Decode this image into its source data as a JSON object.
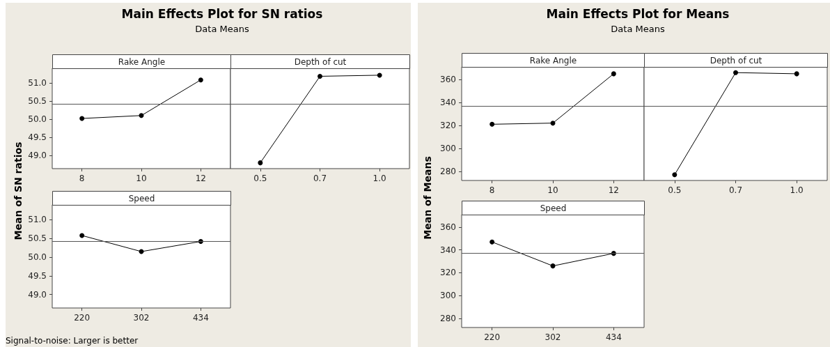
{
  "chart_data": [
    {
      "type": "other",
      "title": "Main Effects Plot for SN ratios",
      "subtitle": "Data Means",
      "ylabel": "Mean of SN ratios",
      "annotations": [
        "Signal-to-noise: Larger is better"
      ]
    },
    {
      "type": "line",
      "title": "Rake Angle",
      "categories": [
        "8",
        "10",
        "12"
      ],
      "values": [
        50.02,
        50.1,
        51.08
      ],
      "color": "#000000",
      "ylim": [
        48.64,
        51.4
      ],
      "yticks": [
        {
          "value": 49,
          "label": "49.0"
        },
        49.5,
        {
          "value": 50,
          "label": "50.0"
        },
        50.5,
        {
          "value": 51,
          "label": "51.0"
        }
      ],
      "ref_lines": [
        {
          "axis": "y",
          "value": 50.42
        }
      ],
      "marker": "circle",
      "grid": false
    },
    {
      "type": "line",
      "title": "Depth of cut",
      "categories": [
        "0.5",
        "0.7",
        "1.0"
      ],
      "values": [
        48.8,
        51.18,
        51.21
      ],
      "color": "#000000",
      "ylim": [
        48.64,
        51.4
      ],
      "yticks": [
        49,
        49.5,
        50,
        50.5,
        51
      ],
      "ref_lines": [
        {
          "axis": "y",
          "value": 50.42
        }
      ],
      "marker": "circle",
      "grid": false,
      "tick_labels": "x"
    },
    {
      "type": "line",
      "title": "Speed",
      "categories": [
        "220",
        "302",
        "434"
      ],
      "values": [
        50.58,
        50.15,
        50.42
      ],
      "color": "#000000",
      "ylim": [
        48.64,
        51.4
      ],
      "yticks": [
        {
          "value": 49,
          "label": "49.0"
        },
        49.5,
        {
          "value": 50,
          "label": "50.0"
        },
        50.5,
        {
          "value": 51,
          "label": "51.0"
        }
      ],
      "ref_lines": [
        {
          "axis": "y",
          "value": 50.42
        }
      ],
      "marker": "circle",
      "grid": false
    },
    {
      "type": "other",
      "title": "Main Effects Plot for Means",
      "subtitle": "Data Means",
      "ylabel": "Mean of Means"
    },
    {
      "type": "line",
      "title": "Rake Angle",
      "categories": [
        "8",
        "10",
        "12"
      ],
      "values": [
        321,
        322,
        365
      ],
      "color": "#000000",
      "ylim": [
        272,
        371
      ],
      "yticks": [
        280,
        300,
        320,
        340,
        360
      ],
      "ref_lines": [
        {
          "axis": "y",
          "value": 337
        }
      ],
      "marker": "circle",
      "grid": false
    },
    {
      "type": "line",
      "title": "Depth of cut",
      "categories": [
        "0.5",
        "0.7",
        "1.0"
      ],
      "values": [
        277,
        366,
        365
      ],
      "color": "#000000",
      "ylim": [
        272,
        371
      ],
      "yticks": [
        280,
        300,
        320,
        340,
        360
      ],
      "ref_lines": [
        {
          "axis": "y",
          "value": 337
        }
      ],
      "marker": "circle",
      "grid": false,
      "tick_labels": "x"
    },
    {
      "type": "line",
      "title": "Speed",
      "categories": [
        "220",
        "302",
        "434"
      ],
      "values": [
        347,
        326,
        337
      ],
      "color": "#000000",
      "ylim": [
        272,
        371
      ],
      "yticks": [
        280,
        300,
        320,
        340,
        360
      ],
      "ref_lines": [
        {
          "axis": "y",
          "value": 337
        }
      ],
      "marker": "circle",
      "grid": false
    }
  ]
}
